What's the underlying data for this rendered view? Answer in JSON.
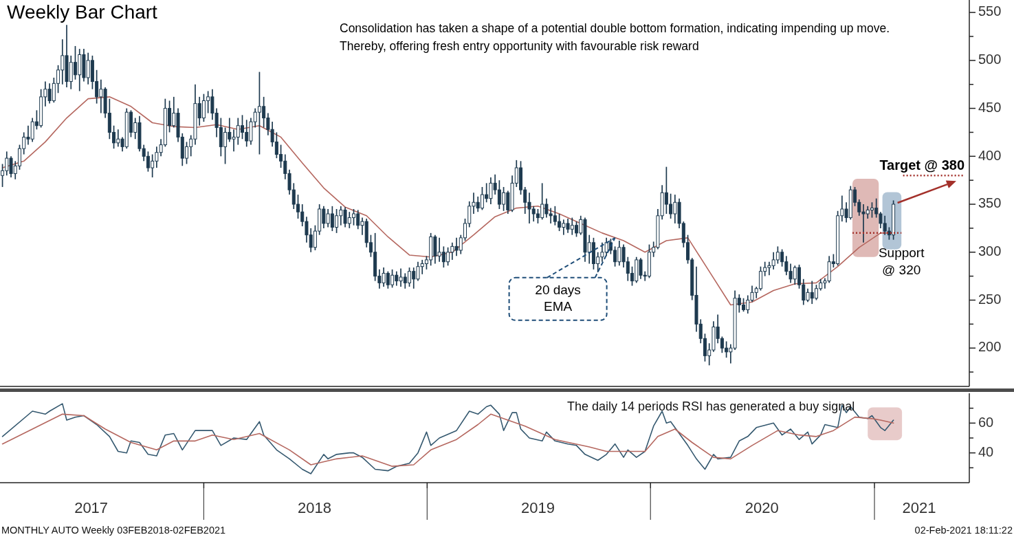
{
  "chart_data": [
    {
      "type": "candlestick",
      "title": "Weekly Bar Chart",
      "annotations": [
        "Consolidation has taken a shape of a potential double bottom formation, indicating impending up move. Thereby, offering fresh entry opportunity with favourable risk reward",
        {
          "text": "20 days EMA",
          "x": "2019-11-04",
          "y": 315
        }
      ],
      "color": "#1e3a4f",
      "x": [
        "2017-02-06",
        "2017-02-13",
        "2017-02-20",
        "2017-02-27",
        "2017-03-06",
        "2017-03-13",
        "2017-03-20",
        "2017-03-27",
        "2017-04-03",
        "2017-04-10",
        "2017-04-17",
        "2017-04-24",
        "2017-05-01",
        "2017-05-08",
        "2017-05-15",
        "2017-05-22",
        "2017-05-29",
        "2017-06-05",
        "2017-06-12",
        "2017-06-19",
        "2017-06-26",
        "2017-07-03",
        "2017-07-10",
        "2017-07-17",
        "2017-07-24",
        "2017-07-31",
        "2017-08-07",
        "2017-08-14",
        "2017-08-21",
        "2017-08-28",
        "2017-09-04",
        "2017-09-11",
        "2017-09-18",
        "2017-09-25",
        "2017-10-02",
        "2017-10-09",
        "2017-10-16",
        "2017-10-23",
        "2017-10-30",
        "2017-11-06",
        "2017-11-13",
        "2017-11-20",
        "2017-11-27",
        "2017-12-04",
        "2017-12-11",
        "2017-12-18",
        "2017-12-25",
        "2018-01-01",
        "2018-01-08",
        "2018-01-15",
        "2018-01-22",
        "2018-01-29",
        "2018-02-05",
        "2018-02-12",
        "2018-02-19",
        "2018-02-26",
        "2018-03-05",
        "2018-03-12",
        "2018-03-19",
        "2018-03-26",
        "2018-04-02",
        "2018-04-09",
        "2018-04-16",
        "2018-04-23",
        "2018-04-30",
        "2018-05-07",
        "2018-05-14",
        "2018-05-21",
        "2018-05-28",
        "2018-06-04",
        "2018-06-11",
        "2018-06-18",
        "2018-06-25",
        "2018-07-02",
        "2018-07-09",
        "2018-07-16",
        "2018-07-23",
        "2018-07-30",
        "2018-08-06",
        "2018-08-13",
        "2018-08-20",
        "2018-08-27",
        "2018-09-03",
        "2018-09-10",
        "2018-09-17",
        "2018-09-24",
        "2018-10-01",
        "2018-10-08",
        "2018-10-15",
        "2018-10-22",
        "2018-10-29",
        "2018-11-05",
        "2018-11-12",
        "2018-11-19",
        "2018-11-26",
        "2018-12-03",
        "2018-12-10",
        "2018-12-17",
        "2018-12-24",
        "2018-12-31",
        "2019-01-07",
        "2019-01-14",
        "2019-01-21",
        "2019-01-28",
        "2019-02-04",
        "2019-02-11",
        "2019-02-18",
        "2019-02-25",
        "2019-03-04",
        "2019-03-11",
        "2019-03-18",
        "2019-03-25",
        "2019-04-01",
        "2019-04-08",
        "2019-04-15",
        "2019-04-22",
        "2019-04-29",
        "2019-05-06",
        "2019-05-13",
        "2019-05-20",
        "2019-05-27",
        "2019-06-03",
        "2019-06-10",
        "2019-06-17",
        "2019-06-24",
        "2019-07-01",
        "2019-07-08",
        "2019-07-15",
        "2019-07-22",
        "2019-07-29",
        "2019-08-05",
        "2019-08-12",
        "2019-08-19",
        "2019-08-26",
        "2019-09-02",
        "2019-09-09",
        "2019-09-16",
        "2019-09-23",
        "2019-09-30",
        "2019-10-07",
        "2019-10-14",
        "2019-10-21",
        "2019-10-28",
        "2019-11-04",
        "2019-11-11",
        "2019-11-18",
        "2019-11-25",
        "2019-12-02",
        "2019-12-09",
        "2019-12-16",
        "2019-12-23",
        "2019-12-30",
        "2020-01-06",
        "2020-01-13",
        "2020-01-20",
        "2020-01-27",
        "2020-02-03",
        "2020-02-10",
        "2020-02-17",
        "2020-02-24",
        "2020-03-02",
        "2020-03-09",
        "2020-03-16",
        "2020-03-23",
        "2020-03-30",
        "2020-04-06",
        "2020-04-13",
        "2020-04-20",
        "2020-04-27",
        "2020-05-04",
        "2020-05-11",
        "2020-05-18",
        "2020-05-25",
        "2020-06-01",
        "2020-06-08",
        "2020-06-15",
        "2020-06-22",
        "2020-06-29",
        "2020-07-06",
        "2020-07-13",
        "2020-07-20",
        "2020-07-27",
        "2020-08-03",
        "2020-08-10",
        "2020-08-17",
        "2020-08-24",
        "2020-08-31",
        "2020-09-07",
        "2020-09-14",
        "2020-09-21",
        "2020-09-28",
        "2020-10-05",
        "2020-10-12",
        "2020-10-19",
        "2020-10-26",
        "2020-11-02",
        "2020-11-09",
        "2020-11-16",
        "2020-11-23",
        "2020-11-30",
        "2020-12-07",
        "2020-12-14",
        "2020-12-21",
        "2020-12-28",
        "2021-01-04",
        "2021-01-11",
        "2021-01-18",
        "2021-01-25",
        "2021-02-01"
      ],
      "ohlc": [
        [
          380,
          392,
          368,
          385
        ],
        [
          385,
          405,
          380,
          398
        ],
        [
          398,
          400,
          378,
          382
        ],
        [
          382,
          395,
          376,
          390
        ],
        [
          390,
          412,
          386,
          408
        ],
        [
          408,
          425,
          402,
          420
        ],
        [
          420,
          432,
          412,
          418
        ],
        [
          418,
          440,
          415,
          436
        ],
        [
          436,
          448,
          428,
          432
        ],
        [
          432,
          470,
          430,
          462
        ],
        [
          462,
          478,
          452,
          470
        ],
        [
          470,
          476,
          455,
          458
        ],
        [
          458,
          482,
          456,
          476
        ],
        [
          476,
          495,
          466,
          490
        ],
        [
          490,
          522,
          475,
          505
        ],
        [
          505,
          537,
          472,
          478
        ],
        [
          478,
          505,
          470,
          498
        ],
        [
          498,
          515,
          480,
          485
        ],
        [
          485,
          512,
          468,
          506
        ],
        [
          506,
          512,
          478,
          482
        ],
        [
          482,
          508,
          475,
          500
        ],
        [
          500,
          505,
          470,
          478
        ],
        [
          478,
          490,
          455,
          462
        ],
        [
          462,
          480,
          445,
          470
        ],
        [
          470,
          472,
          440,
          445
        ],
        [
          445,
          460,
          418,
          425
        ],
        [
          425,
          432,
          408,
          414
        ],
        [
          414,
          428,
          410,
          418
        ],
        [
          418,
          420,
          405,
          410
        ],
        [
          410,
          450,
          408,
          446
        ],
        [
          446,
          448,
          420,
          425
        ],
        [
          425,
          440,
          418,
          435
        ],
        [
          435,
          442,
          405,
          408
        ],
        [
          408,
          412,
          395,
          400
        ],
        [
          400,
          405,
          384,
          388
        ],
        [
          388,
          402,
          378,
          395
        ],
        [
          395,
          410,
          388,
          404
        ],
        [
          404,
          418,
          400,
          412
        ],
        [
          412,
          460,
          410,
          450
        ],
        [
          450,
          458,
          425,
          432
        ],
        [
          432,
          462,
          430,
          445
        ],
        [
          445,
          450,
          415,
          420
        ],
        [
          420,
          424,
          390,
          398
        ],
        [
          398,
          415,
          392,
          410
        ],
        [
          410,
          422,
          400,
          418
        ],
        [
          418,
          475,
          412,
          455
        ],
        [
          455,
          462,
          432,
          440
        ],
        [
          440,
          465,
          436,
          458
        ],
        [
          458,
          468,
          445,
          462
        ],
        [
          462,
          470,
          438,
          445
        ],
        [
          445,
          450,
          420,
          430
        ],
        [
          430,
          440,
          400,
          410
        ],
        [
          410,
          430,
          392,
          425
        ],
        [
          425,
          440,
          415,
          418
        ],
        [
          418,
          428,
          405,
          420
        ],
        [
          420,
          440,
          412,
          432
        ],
        [
          432,
          443,
          418,
          425
        ],
        [
          425,
          438,
          410,
          416
        ],
        [
          416,
          440,
          412,
          436
        ],
        [
          436,
          450,
          430,
          446
        ],
        [
          446,
          488,
          402,
          452
        ],
        [
          452,
          462,
          430,
          440
        ],
        [
          440,
          445,
          422,
          428
        ],
        [
          428,
          436,
          410,
          415
        ],
        [
          415,
          425,
          398,
          402
        ],
        [
          402,
          412,
          388,
          395
        ],
        [
          395,
          402,
          376,
          382
        ],
        [
          382,
          386,
          360,
          365
        ],
        [
          365,
          372,
          345,
          350
        ],
        [
          350,
          360,
          335,
          342
        ],
        [
          342,
          350,
          327,
          332
        ],
        [
          332,
          337,
          310,
          318
        ],
        [
          318,
          325,
          300,
          305
        ],
        [
          305,
          328,
          302,
          322
        ],
        [
          322,
          350,
          318,
          345
        ],
        [
          345,
          348,
          325,
          330
        ],
        [
          330,
          345,
          326,
          340
        ],
        [
          340,
          348,
          322,
          326
        ],
        [
          326,
          345,
          320,
          338
        ],
        [
          338,
          348,
          328,
          344
        ],
        [
          344,
          347,
          326,
          330
        ],
        [
          330,
          342,
          325,
          336
        ],
        [
          336,
          345,
          328,
          340
        ],
        [
          340,
          344,
          324,
          328
        ],
        [
          328,
          336,
          318,
          332
        ],
        [
          332,
          335,
          305,
          310
        ],
        [
          310,
          318,
          295,
          300
        ],
        [
          300,
          320,
          270,
          275
        ],
        [
          275,
          282,
          262,
          268
        ],
        [
          268,
          284,
          264,
          278
        ],
        [
          278,
          280,
          262,
          266
        ],
        [
          266,
          282,
          263,
          276
        ],
        [
          276,
          280,
          265,
          270
        ],
        [
          270,
          283,
          264,
          274
        ],
        [
          274,
          278,
          262,
          268
        ],
        [
          268,
          284,
          264,
          280
        ],
        [
          280,
          284,
          262,
          272
        ],
        [
          272,
          290,
          270,
          285
        ],
        [
          285,
          292,
          277,
          288
        ],
        [
          288,
          296,
          282,
          292
        ],
        [
          292,
          320,
          286,
          316
        ],
        [
          316,
          318,
          288,
          296
        ],
        [
          296,
          315,
          290,
          300
        ],
        [
          300,
          306,
          284,
          290
        ],
        [
          290,
          305,
          286,
          300
        ],
        [
          300,
          310,
          292,
          306
        ],
        [
          306,
          315,
          296,
          302
        ],
        [
          302,
          318,
          298,
          315
        ],
        [
          315,
          335,
          312,
          330
        ],
        [
          330,
          353,
          326,
          348
        ],
        [
          348,
          362,
          340,
          352
        ],
        [
          352,
          358,
          342,
          346
        ],
        [
          346,
          368,
          344,
          360
        ],
        [
          360,
          372,
          352,
          356
        ],
        [
          356,
          378,
          350,
          372
        ],
        [
          372,
          381,
          360,
          365
        ],
        [
          365,
          375,
          345,
          350
        ],
        [
          350,
          368,
          343,
          362
        ],
        [
          362,
          364,
          340,
          344
        ],
        [
          344,
          380,
          342,
          372
        ],
        [
          372,
          396,
          368,
          388
        ],
        [
          388,
          395,
          360,
          365
        ],
        [
          365,
          368,
          340,
          352
        ],
        [
          352,
          362,
          330,
          345
        ],
        [
          345,
          348,
          332,
          340
        ],
        [
          340,
          345,
          330,
          336
        ],
        [
          336,
          372,
          334,
          350
        ],
        [
          350,
          356,
          336,
          340
        ],
        [
          340,
          346,
          330,
          338
        ],
        [
          338,
          348,
          328,
          332
        ],
        [
          332,
          340,
          322,
          326
        ],
        [
          326,
          334,
          318,
          330
        ],
        [
          330,
          335,
          320,
          324
        ],
        [
          324,
          336,
          318,
          328
        ],
        [
          328,
          332,
          316,
          320
        ],
        [
          320,
          338,
          318,
          334
        ],
        [
          334,
          336,
          290,
          300
        ],
        [
          300,
          318,
          288,
          310
        ],
        [
          310,
          315,
          282,
          288
        ],
        [
          288,
          300,
          279,
          295
        ],
        [
          295,
          310,
          290,
          300
        ],
        [
          300,
          315,
          296,
          310
        ],
        [
          310,
          314,
          298,
          302
        ],
        [
          302,
          306,
          285,
          290
        ],
        [
          290,
          312,
          286,
          305
        ],
        [
          305,
          308,
          284,
          290
        ],
        [
          290,
          295,
          270,
          278
        ],
        [
          278,
          285,
          265,
          270
        ],
        [
          270,
          295,
          268,
          292
        ],
        [
          292,
          294,
          272,
          276
        ],
        [
          276,
          280,
          270,
          275
        ],
        [
          275,
          308,
          273,
          300
        ],
        [
          300,
          311,
          295,
          305
        ],
        [
          305,
          345,
          303,
          338
        ],
        [
          338,
          370,
          334,
          362
        ],
        [
          362,
          389,
          340,
          350
        ],
        [
          350,
          361,
          335,
          340
        ],
        [
          340,
          360,
          330,
          352
        ],
        [
          352,
          356,
          325,
          330
        ],
        [
          330,
          332,
          305,
          310
        ],
        [
          310,
          318,
          288,
          292
        ],
        [
          292,
          294,
          250,
          255
        ],
        [
          255,
          285,
          217,
          225
        ],
        [
          225,
          230,
          205,
          210
        ],
        [
          210,
          215,
          186,
          192
        ],
        [
          192,
          205,
          182,
          198
        ],
        [
          198,
          228,
          196,
          222
        ],
        [
          222,
          235,
          205,
          210
        ],
        [
          210,
          212,
          195,
          200
        ],
        [
          200,
          207,
          190,
          196
        ],
        [
          196,
          204,
          184,
          200
        ],
        [
          200,
          260,
          198,
          252
        ],
        [
          252,
          256,
          237,
          245
        ],
        [
          245,
          252,
          238,
          240
        ],
        [
          240,
          255,
          236,
          250
        ],
        [
          250,
          265,
          248,
          258
        ],
        [
          258,
          264,
          252,
          262
        ],
        [
          262,
          285,
          260,
          280
        ],
        [
          280,
          290,
          275,
          284
        ],
        [
          284,
          290,
          276,
          286
        ],
        [
          286,
          300,
          282,
          292
        ],
        [
          292,
          306,
          288,
          300
        ],
        [
          300,
          303,
          285,
          290
        ],
        [
          290,
          296,
          276,
          280
        ],
        [
          280,
          288,
          268,
          272
        ],
        [
          272,
          286,
          266,
          284
        ],
        [
          284,
          287,
          262,
          266
        ],
        [
          266,
          272,
          245,
          250
        ],
        [
          250,
          262,
          248,
          258
        ],
        [
          258,
          270,
          246,
          252
        ],
        [
          252,
          266,
          250,
          262
        ],
        [
          262,
          272,
          260,
          268
        ],
        [
          268,
          273,
          262,
          270
        ],
        [
          270,
          296,
          268,
          290
        ],
        [
          290,
          298,
          284,
          288
        ],
        [
          288,
          343,
          286,
          338
        ],
        [
          338,
          359,
          332,
          345
        ],
        [
          345,
          352,
          331,
          336
        ],
        [
          336,
          369,
          334,
          365
        ],
        [
          365,
          368,
          348,
          352
        ],
        [
          352,
          355,
          338,
          342
        ],
        [
          342,
          350,
          310,
          340
        ],
        [
          340,
          348,
          335,
          344
        ],
        [
          344,
          352,
          336,
          346
        ],
        [
          346,
          356,
          336,
          340
        ],
        [
          340,
          342,
          325,
          330
        ],
        [
          330,
          338,
          318,
          322
        ],
        [
          322,
          326,
          313,
          318
        ],
        [
          318,
          354,
          313,
          350
        ]
      ],
      "series": [
        {
          "type": "line",
          "color": "#b5675f",
          "x": [
            "2017-02-06",
            "2017-03-13",
            "2017-04-17",
            "2017-05-22",
            "2017-06-26",
            "2017-07-31",
            "2017-09-04",
            "2017-10-09",
            "2017-11-13",
            "2017-12-18",
            "2018-01-22",
            "2018-02-26",
            "2018-04-02",
            "2018-05-07",
            "2018-06-11",
            "2018-07-16",
            "2018-08-20",
            "2018-09-24",
            "2018-10-29",
            "2018-12-03",
            "2019-01-07",
            "2019-02-11",
            "2019-03-18",
            "2019-04-22",
            "2019-05-27",
            "2019-07-01",
            "2019-08-05",
            "2019-09-09",
            "2019-10-14",
            "2019-11-18",
            "2019-12-23",
            "2020-01-27",
            "2020-03-02",
            "2020-04-06",
            "2020-05-11",
            "2020-06-15",
            "2020-07-20",
            "2020-08-24",
            "2020-09-28",
            "2020-11-02",
            "2020-12-07",
            "2021-01-11",
            "2021-02-01"
          ],
          "values": [
            388,
            395,
            415,
            440,
            460,
            462,
            452,
            435,
            431,
            430,
            433,
            428,
            432,
            420,
            393,
            367,
            347,
            338,
            316,
            297,
            295,
            300,
            318,
            337,
            346,
            348,
            340,
            330,
            320,
            312,
            300,
            312,
            315,
            280,
            245,
            248,
            260,
            267,
            268,
            285,
            305,
            320,
            320
          ]
        }
      ],
      "xlim": [
        "2017-02-02",
        "2021-06-05"
      ],
      "ylim": [
        160,
        563
      ],
      "yticks": [
        {
          "value": 175,
          "label": null
        },
        200,
        {
          "value": 225,
          "label": null
        },
        250,
        {
          "value": 275,
          "label": null
        },
        300,
        {
          "value": 325,
          "label": null
        },
        350,
        {
          "value": 375,
          "label": null
        },
        400,
        {
          "value": 425,
          "label": null
        },
        450,
        {
          "value": 475,
          "label": null
        },
        500,
        {
          "value": 525,
          "label": null
        },
        550
      ],
      "tick_labels": "y",
      "ref_lines": [
        {
          "axis": "y",
          "value": 380,
          "label": "Target @ 380",
          "color": "#a3302a",
          "line_style": "dotted"
        },
        {
          "axis": "y",
          "value": 320,
          "label": "Support @ 320",
          "color": "#a3302a",
          "line_style": "dotted"
        }
      ],
      "bands": [
        {
          "axis": "x",
          "from": "2020-11-26",
          "to": "2021-01-08",
          "color": "#c98a86"
        },
        {
          "axis": "x",
          "from": "2021-01-14",
          "to": "2021-02-14",
          "color": "#7f9fbb"
        }
      ]
    },
    {
      "type": "line",
      "annotations": [
        "The daily 14 periods RSI has generated a buy signal",
        "MONTHLY AUTO  Weekly 03FEB2018-02FEB2021",
        "02-Feb-2021 18:11:22"
      ],
      "series": [
        {
          "color": "#34586f",
          "x": [
            "2017-02-06",
            "2017-03-27",
            "2017-04-17",
            "2017-04-24",
            "2017-05-15",
            "2017-05-22",
            "2017-06-05",
            "2017-06-19",
            "2017-07-10",
            "2017-07-31",
            "2017-08-14",
            "2017-08-28",
            "2017-09-04",
            "2017-09-18",
            "2017-10-02",
            "2017-10-16",
            "2017-10-30",
            "2017-11-13",
            "2017-11-27",
            "2017-12-18",
            "2018-01-15",
            "2018-01-29",
            "2018-02-19",
            "2018-03-12",
            "2018-04-02",
            "2018-04-09",
            "2018-04-30",
            "2018-05-21",
            "2018-06-11",
            "2018-06-25",
            "2018-07-16",
            "2018-07-23",
            "2018-08-06",
            "2018-08-27",
            "2018-09-03",
            "2018-09-17",
            "2018-10-08",
            "2018-10-29",
            "2018-11-12",
            "2018-12-03",
            "2018-12-17",
            "2018-12-31",
            "2019-01-07",
            "2019-01-21",
            "2019-02-18",
            "2019-03-11",
            "2019-03-25",
            "2019-04-08",
            "2019-04-15",
            "2019-04-29",
            "2019-05-06",
            "2019-05-20",
            "2019-05-27",
            "2019-06-03",
            "2019-06-17",
            "2019-07-08",
            "2019-07-15",
            "2019-07-29",
            "2019-08-19",
            "2019-09-02",
            "2019-09-16",
            "2019-10-07",
            "2019-10-21",
            "2019-11-04",
            "2019-11-18",
            "2019-11-25",
            "2019-12-09",
            "2019-12-23",
            "2020-01-06",
            "2020-01-20",
            "2020-01-27",
            "2020-02-03",
            "2020-03-02",
            "2020-03-16",
            "2020-03-30",
            "2020-04-13",
            "2020-04-20",
            "2020-05-11",
            "2020-05-25",
            "2020-06-08",
            "2020-06-22",
            "2020-07-20",
            "2020-08-03",
            "2020-08-17",
            "2020-08-31",
            "2020-09-14",
            "2020-09-21",
            "2020-10-05",
            "2020-10-12",
            "2020-11-02",
            "2020-11-09",
            "2020-11-16",
            "2020-11-23",
            "2020-12-07",
            "2020-12-21",
            "2020-12-28",
            "2021-01-11",
            "2021-01-18",
            "2021-02-01"
          ],
          "values": [
            51,
            68,
            66,
            68,
            73,
            62,
            64,
            65,
            59,
            51,
            41,
            40,
            48,
            47,
            39,
            38,
            52,
            53,
            42,
            55,
            55,
            45,
            50,
            49,
            61,
            52,
            42,
            36,
            29,
            26,
            39,
            36,
            39,
            40,
            40,
            37,
            29,
            28,
            31,
            33,
            40,
            54,
            45,
            50,
            55,
            68,
            66,
            71,
            72,
            66,
            55,
            67,
            67,
            56,
            50,
            48,
            54,
            48,
            46,
            45,
            39,
            35,
            39,
            46,
            37,
            42,
            37,
            41,
            58,
            68,
            60,
            61,
            45,
            36,
            29,
            39,
            36,
            37,
            48,
            51,
            57,
            60,
            52,
            56,
            49,
            54,
            46,
            52,
            59,
            57,
            72,
            67,
            71,
            64,
            63,
            65,
            57,
            55,
            62
          ]
        },
        {
          "color": "#b5675f",
          "x": [
            "2017-02-06",
            "2017-03-27",
            "2017-05-15",
            "2017-06-19",
            "2017-07-24",
            "2017-09-04",
            "2017-10-16",
            "2017-11-13",
            "2017-12-18",
            "2018-01-15",
            "2018-02-19",
            "2018-04-02",
            "2018-05-21",
            "2018-06-25",
            "2018-08-06",
            "2018-09-17",
            "2018-11-05",
            "2018-12-10",
            "2019-01-07",
            "2019-02-18",
            "2019-03-25",
            "2019-04-15",
            "2019-06-10",
            "2019-07-29",
            "2019-09-23",
            "2019-10-21",
            "2019-12-23",
            "2020-01-13",
            "2020-02-10",
            "2020-03-09",
            "2020-04-13",
            "2020-05-11",
            "2020-06-15",
            "2020-07-27",
            "2020-08-31",
            "2020-09-28",
            "2020-10-26",
            "2020-11-30",
            "2020-12-28",
            "2021-01-11",
            "2021-02-01"
          ],
          "values": [
            46,
            56,
            66,
            65,
            56,
            47,
            42,
            48,
            48,
            52,
            49,
            53,
            42,
            32,
            36,
            38,
            31,
            32,
            42,
            49,
            59,
            66,
            58,
            49,
            44,
            41,
            41,
            51,
            56,
            47,
            37,
            36,
            45,
            55,
            52,
            51,
            55,
            64,
            63,
            62,
            60
          ]
        }
      ],
      "xlim": [
        "2017-02-02",
        "2021-06-05"
      ],
      "xticks": [
        {
          "value": "2017-07-01",
          "label": "2017"
        },
        {
          "value": "2018-01-01",
          "label": null
        },
        {
          "value": "2018-07-01",
          "label": "2018"
        },
        {
          "value": "2019-01-01",
          "label": null
        },
        {
          "value": "2019-07-01",
          "label": "2019"
        },
        {
          "value": "2020-01-01",
          "label": null
        },
        {
          "value": "2020-07-01",
          "label": "2020"
        },
        {
          "value": "2021-01-01",
          "label": null
        },
        {
          "value": "2021-03-15",
          "label": "2021"
        }
      ],
      "ylim": [
        20,
        80
      ],
      "yticks": [
        {
          "value": 30,
          "label": null
        },
        40,
        {
          "value": 50,
          "label": null
        },
        60,
        {
          "value": 70,
          "label": null
        }
      ],
      "bands": [
        {
          "axis": "x",
          "from": "2020-12-21",
          "to": "2021-02-15",
          "color": "#d9a9a6"
        }
      ]
    }
  ]
}
